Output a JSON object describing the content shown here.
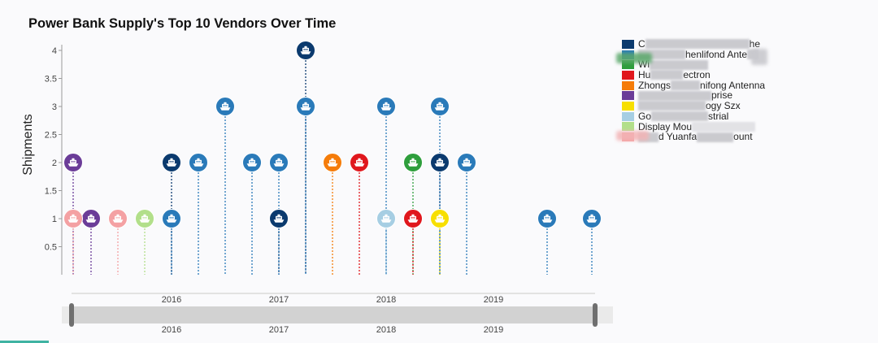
{
  "chart_data": {
    "type": "scatter",
    "title": "Power Bank Supply's Top 10 Vendors Over Time",
    "ylabel": "Shipments",
    "ylim": [
      0,
      4
    ],
    "yticks": [
      "0.5",
      "1",
      "1.5",
      "2",
      "2.5",
      "3",
      "3.5",
      "4"
    ],
    "xticks": [
      "2016",
      "2017",
      "2018",
      "2019"
    ],
    "xlim": [
      "2015-02",
      "2019-12"
    ],
    "legend_position": "top-right",
    "marker_icon": "ship-icon",
    "series": [
      {
        "legend": [
          "C",
          "he"
        ],
        "color": "#0b3a6e",
        "points": [
          {
            "x": "2016-01",
            "y": 2
          },
          {
            "x": "2017-01",
            "y": 1
          },
          {
            "x": "2017-04",
            "y": 4
          },
          {
            "x": "2018-07",
            "y": 2
          }
        ]
      },
      {
        "legend": [
          "henlifond Ante"
        ],
        "color": "#2a7ab9",
        "points": [
          {
            "x": "2016-01",
            "y": 1
          },
          {
            "x": "2016-04",
            "y": 2
          },
          {
            "x": "2016-07",
            "y": 3
          },
          {
            "x": "2016-10",
            "y": 2
          },
          {
            "x": "2017-01",
            "y": 2
          },
          {
            "x": "2017-04",
            "y": 3
          },
          {
            "x": "2018-01",
            "y": 3
          },
          {
            "x": "2018-07",
            "y": 3
          },
          {
            "x": "2018-10",
            "y": 2
          },
          {
            "x": "2019-07",
            "y": 1
          },
          {
            "x": "2019-12",
            "y": 1
          }
        ]
      },
      {
        "legend": [
          "Wi"
        ],
        "color": "#2e9e3c",
        "points": [
          {
            "x": "2018-04",
            "y": 2
          }
        ]
      },
      {
        "legend": [
          "Hu",
          "ectron"
        ],
        "color": "#e0171d",
        "points": [
          {
            "x": "2017-10",
            "y": 2
          },
          {
            "x": "2018-04",
            "y": 1
          }
        ]
      },
      {
        "legend": [
          "Zhongs",
          "nifong Antenna"
        ],
        "color": "#f57c0a",
        "points": [
          {
            "x": "2017-07",
            "y": 2
          }
        ]
      },
      {
        "legend": [
          "prise"
        ],
        "color": "#6b3c98",
        "points": [
          {
            "x": "2015-02",
            "y": 2
          },
          {
            "x": "2015-04",
            "y": 1
          }
        ]
      },
      {
        "legend": [
          "ogy Szx"
        ],
        "color": "#f7df00",
        "points": [
          {
            "x": "2018-07",
            "y": 1
          }
        ]
      },
      {
        "legend": [
          "Go",
          "strial"
        ],
        "color": "#a6cee3",
        "points": [
          {
            "x": "2018-01",
            "y": 1
          }
        ]
      },
      {
        "legend": [
          "Display Mou"
        ],
        "color": "#b2df8a",
        "points": [
          {
            "x": "2015-10",
            "y": 1
          }
        ]
      },
      {
        "legend": [
          "d Yuanfa",
          "ount"
        ],
        "color": "#f4a1a3",
        "points": [
          {
            "x": "2015-02",
            "y": 1
          },
          {
            "x": "2015-07",
            "y": 1
          }
        ]
      }
    ]
  }
}
